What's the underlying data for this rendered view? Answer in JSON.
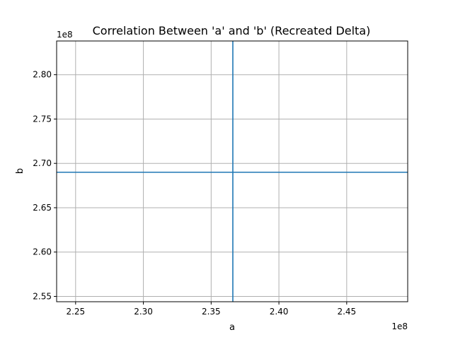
{
  "chart_data": {
    "type": "line",
    "title": "Correlation Between 'a' and 'b' (Recreated Delta)",
    "xlabel": "a",
    "ylabel": "b",
    "x_offset_label": "1e8",
    "y_offset_label": "1e8",
    "xlim": [
      2.236,
      2.495
    ],
    "ylim": [
      2.544,
      2.838
    ],
    "x_ticks": [
      2.25,
      2.3,
      2.35,
      2.4,
      2.45
    ],
    "x_tick_labels": [
      "2.25",
      "2.30",
      "2.35",
      "2.40",
      "2.45"
    ],
    "y_ticks": [
      2.55,
      2.6,
      2.65,
      2.7,
      2.75,
      2.8
    ],
    "y_tick_labels": [
      "2.55",
      "2.60",
      "2.65",
      "2.70",
      "2.75",
      "2.80"
    ],
    "grid": true,
    "series": [
      {
        "orientation": "vertical",
        "x": 2.366,
        "color": "#1f77b4"
      },
      {
        "orientation": "horizontal",
        "y": 2.69,
        "color": "#1f77b4"
      }
    ],
    "line_color": "#1f77b4",
    "grid_color": "#b0b0b0"
  }
}
